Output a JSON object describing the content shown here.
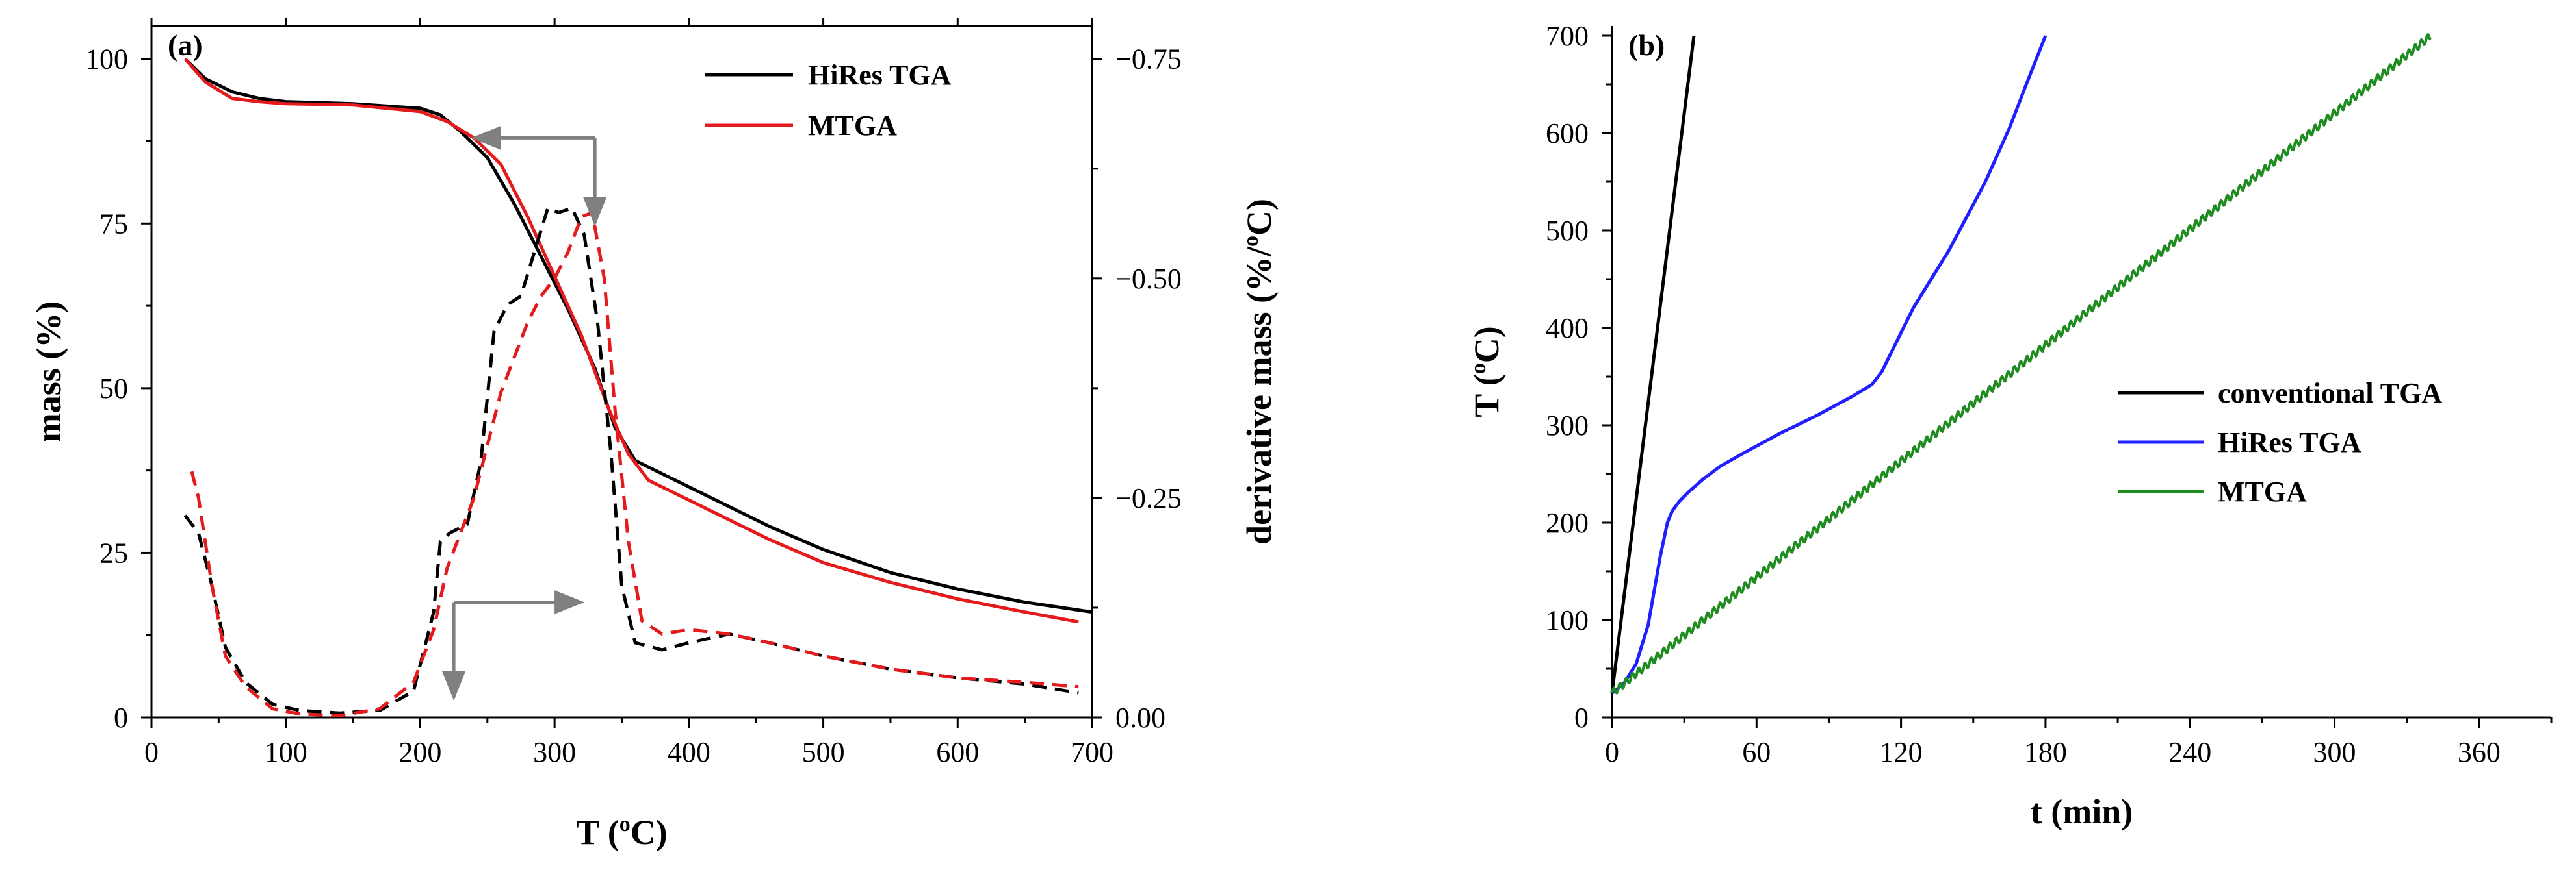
{
  "chart_data": [
    {
      "panel": "(a)",
      "type": "line",
      "xlabel": {
        "base": "T (",
        "sup": "o",
        "tail": "C)"
      },
      "ylabel": "mass (%)",
      "y2label": {
        "base": "derivative mass (%/",
        "sup": "o",
        "tail": "C)"
      },
      "xlim": [
        0,
        700
      ],
      "ylim": [
        0,
        105
      ],
      "y2lim": [
        0,
        -0.7875
      ],
      "xticks": [
        0,
        100,
        200,
        300,
        400,
        500,
        600,
        700
      ],
      "yticks": [
        0,
        25,
        50,
        75,
        100
      ],
      "y2ticks": [
        0,
        -0.25,
        -0.5,
        -0.75
      ],
      "y2ticklabels": [
        "0.00",
        "−0.25",
        "−0.50",
        "−0.75"
      ],
      "legend": [
        {
          "name": "HiRes TGA",
          "color": "#000000"
        },
        {
          "name": "MTGA",
          "color": "#e41a1c"
        }
      ],
      "series": [
        {
          "name": "HiRes TGA mass",
          "axis": "left",
          "color": "#000000",
          "dash": false,
          "x": [
            25,
            40,
            60,
            80,
            100,
            150,
            200,
            215,
            230,
            250,
            270,
            290,
            310,
            330,
            345,
            360,
            380,
            400,
            430,
            460,
            500,
            550,
            600,
            650,
            700
          ],
          "y": [
            100,
            97,
            95,
            94,
            93.5,
            93.2,
            92.5,
            91.5,
            89,
            85,
            78,
            70,
            62,
            53,
            44,
            39,
            37,
            35,
            32,
            29,
            25.5,
            22,
            19.5,
            17.5,
            16
          ]
        },
        {
          "name": "MTGA mass",
          "axis": "left",
          "color": "#e41a1c",
          "dash": false,
          "x": [
            25,
            40,
            60,
            80,
            100,
            150,
            200,
            220,
            240,
            260,
            280,
            300,
            320,
            340,
            355,
            370,
            400,
            430,
            460,
            500,
            550,
            600,
            650,
            690
          ],
          "y": [
            100,
            96.5,
            94,
            93.5,
            93.2,
            93,
            92,
            90.5,
            88,
            84,
            76,
            67,
            58,
            47,
            40,
            36,
            33,
            30,
            27,
            23.5,
            20.5,
            18,
            16,
            14.5
          ]
        },
        {
          "name": "HiRes TGA derivative",
          "axis": "right",
          "color": "#000000",
          "dash": true,
          "x": [
            25,
            35,
            45,
            55,
            70,
            90,
            110,
            140,
            170,
            195,
            210,
            215,
            222,
            235,
            245,
            255,
            265,
            275,
            285,
            295,
            303,
            313,
            322,
            332,
            342,
            350,
            360,
            380,
            400,
            430,
            460,
            500,
            550,
            600,
            650,
            690
          ],
          "y": [
            -0.23,
            -0.21,
            -0.15,
            -0.08,
            -0.04,
            -0.015,
            -0.008,
            -0.005,
            -0.008,
            -0.03,
            -0.12,
            -0.2,
            -0.21,
            -0.22,
            -0.29,
            -0.44,
            -0.47,
            -0.48,
            -0.53,
            -0.58,
            -0.575,
            -0.58,
            -0.55,
            -0.45,
            -0.3,
            -0.15,
            -0.085,
            -0.077,
            -0.085,
            -0.095,
            -0.085,
            -0.07,
            -0.055,
            -0.045,
            -0.038,
            -0.028
          ]
        },
        {
          "name": "MTGA derivative",
          "axis": "right",
          "color": "#e41a1c",
          "dash": true,
          "x": [
            30,
            35,
            45,
            55,
            70,
            90,
            110,
            140,
            170,
            195,
            210,
            220,
            230,
            240,
            250,
            260,
            270,
            280,
            290,
            300,
            310,
            320,
            328,
            337,
            345,
            355,
            365,
            380,
            400,
            430,
            460,
            500,
            550,
            600,
            650,
            690
          ],
          "y": [
            -0.28,
            -0.25,
            -0.15,
            -0.07,
            -0.035,
            -0.01,
            -0.004,
            -0.002,
            -0.01,
            -0.04,
            -0.1,
            -0.17,
            -0.21,
            -0.25,
            -0.31,
            -0.37,
            -0.41,
            -0.45,
            -0.48,
            -0.5,
            -0.53,
            -0.57,
            -0.575,
            -0.5,
            -0.35,
            -0.2,
            -0.11,
            -0.095,
            -0.1,
            -0.095,
            -0.085,
            -0.07,
            -0.055,
            -0.045,
            -0.04,
            -0.035
          ]
        }
      ],
      "annotations": [
        {
          "type": "arrow",
          "meaning": "mass curves read on left axis",
          "points": [
            [
              330,
              88
            ],
            [
              240,
              88
            ]
          ],
          "axis": "left"
        },
        {
          "type": "arrow",
          "meaning": "drop marker",
          "points": [
            [
              330,
              88
            ],
            [
              330,
              75
            ]
          ],
          "axis": "left"
        },
        {
          "type": "arrow",
          "meaning": "derivative curves read on right axis",
          "points": [
            [
              225,
              17.5
            ],
            [
              320,
              17.5
            ]
          ],
          "axis": "left"
        },
        {
          "type": "arrow",
          "meaning": "drop marker",
          "points": [
            [
              225,
              17.5
            ],
            [
              225,
              3
            ]
          ],
          "axis": "left"
        }
      ]
    },
    {
      "panel": "(b)",
      "type": "line",
      "xlabel": "t (min)",
      "ylabel": {
        "base": "T (",
        "sup": "o",
        "tail": "C)"
      },
      "xlim": [
        0,
        390
      ],
      "ylim": [
        0,
        710
      ],
      "xticks": [
        0,
        60,
        120,
        180,
        240,
        300,
        360
      ],
      "yticks": [
        0,
        100,
        200,
        300,
        400,
        500,
        600,
        700
      ],
      "legend": [
        {
          "name": "conventional TGA",
          "color": "#000000"
        },
        {
          "name": "HiRes TGA",
          "color": "#1f1fff"
        },
        {
          "name": "MTGA",
          "color": "#1e8c1e"
        }
      ],
      "series": [
        {
          "name": "conventional TGA",
          "color": "#000000",
          "x": [
            0,
            34
          ],
          "y": [
            25,
            700
          ]
        },
        {
          "name": "HiRes TGA",
          "color": "#1f1fff",
          "x": [
            0,
            5,
            10,
            15,
            20,
            23,
            25,
            28,
            32,
            38,
            45,
            55,
            70,
            85,
            100,
            108,
            112,
            117,
            125,
            140,
            155,
            165,
            172,
            180
          ],
          "y": [
            25,
            35,
            55,
            95,
            165,
            200,
            212,
            222,
            232,
            245,
            258,
            272,
            292,
            310,
            330,
            342,
            355,
            380,
            420,
            480,
            550,
            605,
            650,
            700
          ],
          "x_end": 180
        },
        {
          "name": "MTGA",
          "color": "#1e8c1e",
          "x": [
            0,
            340
          ],
          "y": [
            25,
            700
          ],
          "modulation_period_min": 2.6,
          "modulation_amplitude_C": 4
        }
      ]
    }
  ]
}
